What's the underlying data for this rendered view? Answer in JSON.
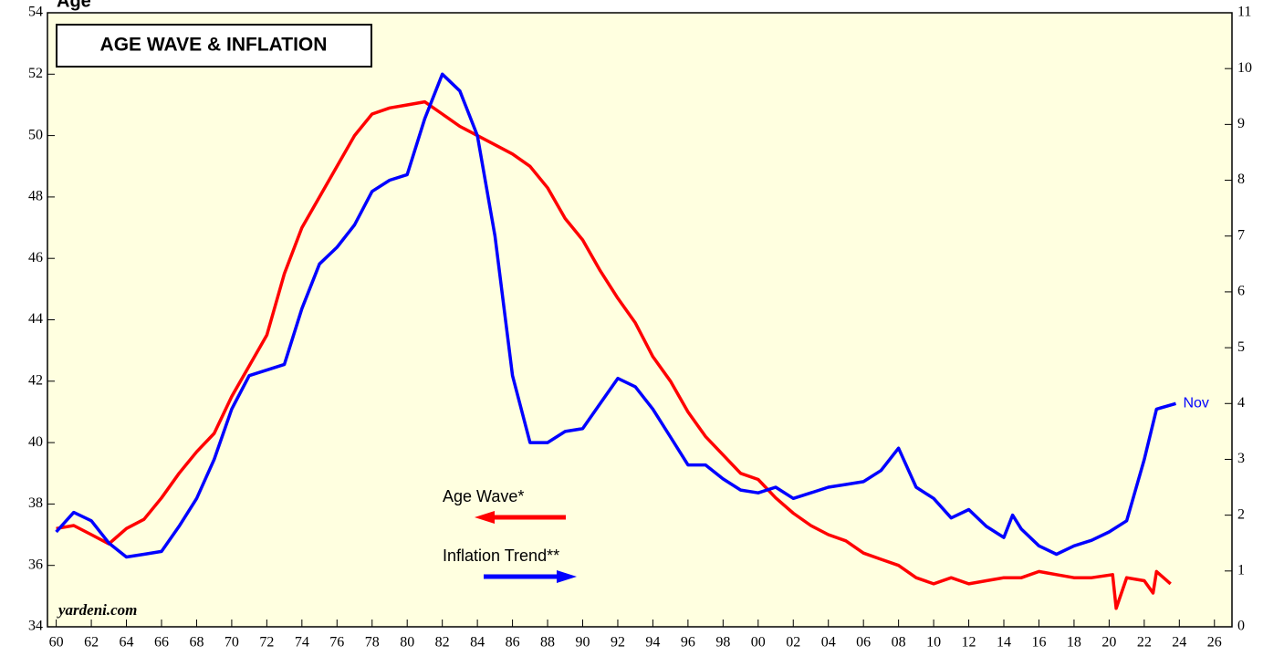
{
  "chart_data": {
    "type": "line",
    "corner_text": "Age",
    "title": "AGE WAVE & INFLATION",
    "source": "yardeni.com",
    "annotation": "Nov",
    "xlim": [
      1959.5,
      2027
    ],
    "xticks": [
      {
        "value": 1960,
        "label": "60"
      },
      {
        "value": 1962,
        "label": "62"
      },
      {
        "value": 1964,
        "label": "64"
      },
      {
        "value": 1966,
        "label": "66"
      },
      {
        "value": 1968,
        "label": "68"
      },
      {
        "value": 1970,
        "label": "70"
      },
      {
        "value": 1972,
        "label": "72"
      },
      {
        "value": 1974,
        "label": "74"
      },
      {
        "value": 1976,
        "label": "76"
      },
      {
        "value": 1978,
        "label": "78"
      },
      {
        "value": 1980,
        "label": "80"
      },
      {
        "value": 1982,
        "label": "82"
      },
      {
        "value": 1984,
        "label": "84"
      },
      {
        "value": 1986,
        "label": "86"
      },
      {
        "value": 1988,
        "label": "88"
      },
      {
        "value": 1990,
        "label": "90"
      },
      {
        "value": 1992,
        "label": "92"
      },
      {
        "value": 1994,
        "label": "94"
      },
      {
        "value": 1996,
        "label": "96"
      },
      {
        "value": 1998,
        "label": "98"
      },
      {
        "value": 2000,
        "label": "00"
      },
      {
        "value": 2002,
        "label": "02"
      },
      {
        "value": 2004,
        "label": "04"
      },
      {
        "value": 2006,
        "label": "06"
      },
      {
        "value": 2008,
        "label": "08"
      },
      {
        "value": 2010,
        "label": "10"
      },
      {
        "value": 2012,
        "label": "12"
      },
      {
        "value": 2014,
        "label": "14"
      },
      {
        "value": 2016,
        "label": "16"
      },
      {
        "value": 2018,
        "label": "18"
      },
      {
        "value": 2020,
        "label": "20"
      },
      {
        "value": 2022,
        "label": "22"
      },
      {
        "value": 2024,
        "label": "24"
      },
      {
        "value": 2026,
        "label": "26"
      }
    ],
    "ylim": [
      34,
      54
    ],
    "yticks": [
      34,
      36,
      38,
      40,
      42,
      44,
      46,
      48,
      50,
      52,
      54
    ],
    "y2lim": [
      0,
      11
    ],
    "y2ticks": [
      0,
      1,
      2,
      3,
      4,
      5,
      6,
      7,
      8,
      9,
      10,
      11
    ],
    "background": "#ffffe0",
    "series": [
      {
        "name": "Age Wave*",
        "color": "#ff0000",
        "arrow": "left",
        "x": [
          1960,
          1961,
          1962,
          1963,
          1964,
          1965,
          1966,
          1967,
          1968,
          1969,
          1970,
          1971,
          1972,
          1973,
          1974,
          1975,
          1976,
          1977,
          1978,
          1979,
          1980,
          1981,
          1982,
          1983,
          1984,
          1985,
          1986,
          1987,
          1988,
          1989,
          1990,
          1991,
          1992,
          1993,
          1994,
          1995,
          1996,
          1997,
          1998,
          1999,
          2000,
          2001,
          2002,
          2003,
          2004,
          2005,
          2006,
          2007,
          2008,
          2009,
          2010,
          2011,
          2012,
          2013,
          2014,
          2015,
          2016,
          2017,
          2018,
          2019,
          2020.2,
          2020.4,
          2021,
          2022,
          2022.5,
          2022.7,
          2023.5
        ],
        "values": [
          37.2,
          37.3,
          37.0,
          36.7,
          37.2,
          37.5,
          38.2,
          39.0,
          39.7,
          40.3,
          41.5,
          42.5,
          43.5,
          45.5,
          47.0,
          48.0,
          49.0,
          50.0,
          50.7,
          50.9,
          51.0,
          51.1,
          50.7,
          50.3,
          50.0,
          49.7,
          49.4,
          49.0,
          48.3,
          47.3,
          46.6,
          45.6,
          44.7,
          43.9,
          42.8,
          42.0,
          41.0,
          40.2,
          39.6,
          39.0,
          38.8,
          38.2,
          37.7,
          37.3,
          37.0,
          36.8,
          36.4,
          36.2,
          36.0,
          35.6,
          35.4,
          35.6,
          35.4,
          35.5,
          35.6,
          35.6,
          35.8,
          35.7,
          35.6,
          35.6,
          35.7,
          34.6,
          35.6,
          35.5,
          35.1,
          35.8,
          35.4
        ]
      },
      {
        "name": "Inflation Trend**",
        "color": "#0000ff",
        "axis": "y2",
        "arrow": "right",
        "x": [
          1960,
          1961,
          1962,
          1963,
          1964,
          1965,
          1966,
          1967,
          1968,
          1969,
          1970,
          1971,
          1972,
          1973,
          1974,
          1975,
          1976,
          1977,
          1978,
          1979,
          1980,
          1981,
          1982,
          1983,
          1984,
          1985,
          1986,
          1987,
          1988,
          1989,
          1990,
          1991,
          1992,
          1993,
          1994,
          1995,
          1996,
          1997,
          1998,
          1999,
          2000,
          2001,
          2002,
          2003,
          2004,
          2005,
          2006,
          2007,
          2008,
          2009,
          2010,
          2011,
          2012,
          2013,
          2014,
          2014.5,
          2015,
          2016,
          2017,
          2018,
          2019,
          2020,
          2021,
          2022,
          2022.7,
          2023.8
        ],
        "values": [
          1.7,
          2.05,
          1.9,
          1.5,
          1.25,
          1.3,
          1.35,
          1.8,
          2.3,
          3.0,
          3.9,
          4.5,
          4.6,
          4.7,
          5.7,
          6.5,
          6.8,
          7.2,
          7.8,
          8.0,
          8.1,
          9.1,
          9.9,
          9.6,
          8.8,
          7.0,
          4.5,
          3.3,
          3.3,
          3.5,
          3.55,
          4.0,
          4.45,
          4.3,
          3.9,
          3.4,
          2.9,
          2.9,
          2.65,
          2.45,
          2.4,
          2.5,
          2.3,
          2.4,
          2.5,
          2.55,
          2.6,
          2.8,
          3.2,
          2.5,
          2.3,
          1.95,
          2.1,
          1.8,
          1.6,
          2.0,
          1.75,
          1.45,
          1.3,
          1.45,
          1.55,
          1.7,
          1.9,
          3.0,
          3.9,
          4.0
        ]
      }
    ]
  }
}
